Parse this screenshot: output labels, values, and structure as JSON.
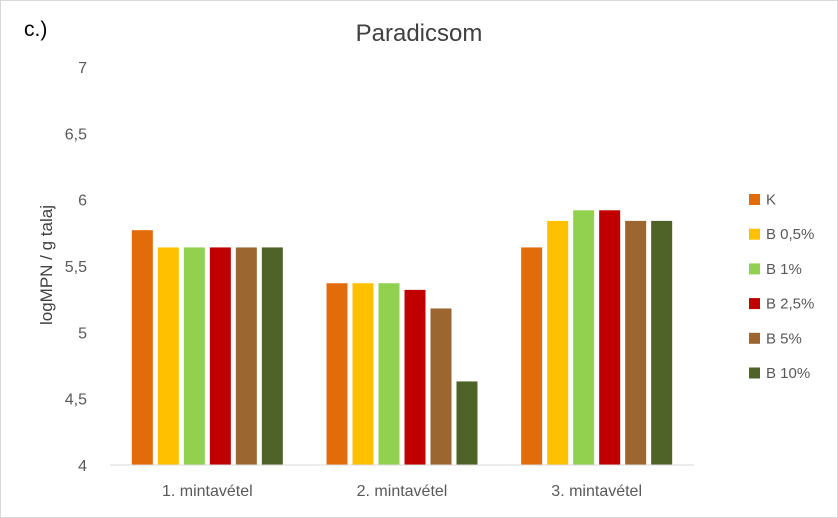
{
  "panel_label": "c.)",
  "chart_data": {
    "type": "bar",
    "title": "Paradicsom",
    "xlabel": "",
    "ylabel": "logMPN / g talaj",
    "categories": [
      "1. mintavétel",
      "2. mintavétel",
      "3. mintavétel"
    ],
    "ylim": [
      4,
      7
    ],
    "yticks": [
      4,
      4.5,
      5,
      5.5,
      6,
      6.5,
      7
    ],
    "ytick_labels": [
      "4",
      "4,5",
      "5",
      "5,5",
      "6",
      "6,5",
      "7"
    ],
    "grid": false,
    "legend_position": "right",
    "series": [
      {
        "name": "K",
        "color": "#E36C0A",
        "values": [
          5.77,
          5.37,
          5.64
        ]
      },
      {
        "name": "B 0,5%",
        "color": "#FFC000",
        "values": [
          5.64,
          5.37,
          5.84
        ]
      },
      {
        "name": "B 1%",
        "color": "#92D050",
        "values": [
          5.64,
          5.37,
          5.92
        ]
      },
      {
        "name": "B 2,5%",
        "color": "#C00000",
        "values": [
          5.64,
          5.32,
          5.92
        ]
      },
      {
        "name": "B 5%",
        "color": "#9C6631",
        "values": [
          5.64,
          5.18,
          5.84
        ]
      },
      {
        "name": "B 10%",
        "color": "#4F6228",
        "values": [
          5.64,
          4.63,
          5.84
        ]
      }
    ]
  }
}
